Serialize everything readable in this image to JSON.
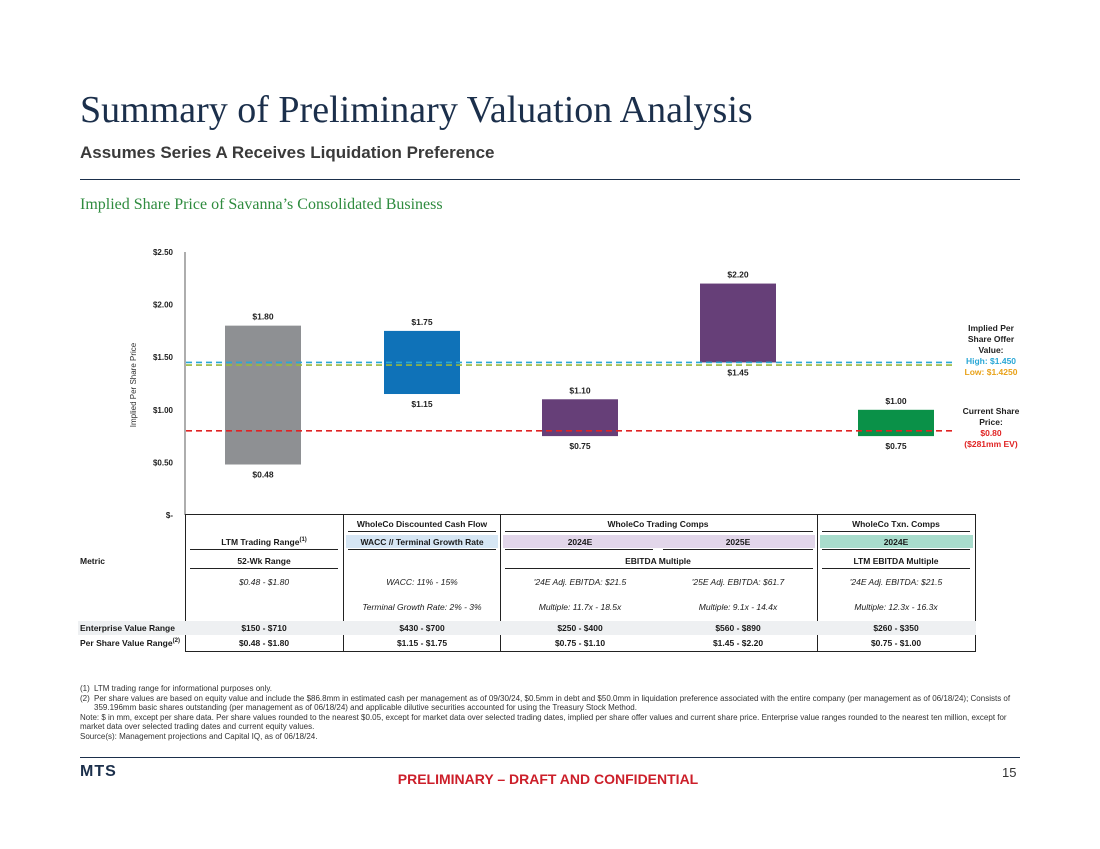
{
  "header": {
    "title": "Summary of Preliminary Valuation Analysis",
    "subtitle": "Assumes Series A Receives Liquidation Preference",
    "section_title": "Implied Share Price of Savanna’s Consolidated Business"
  },
  "chart_data": {
    "type": "bar",
    "subtype": "floating-range",
    "ylabel": "Implied Per Share Price",
    "ylim": [
      0,
      2.5
    ],
    "y_ticks": [
      {
        "value": 0,
        "label": "$-"
      },
      {
        "value": 0.5,
        "label": "$0.50"
      },
      {
        "value": 1.0,
        "label": "$1.00"
      },
      {
        "value": 1.5,
        "label": "$1.50"
      },
      {
        "value": 2.0,
        "label": "$2.00"
      },
      {
        "value": 2.5,
        "label": "$2.50"
      }
    ],
    "bars": [
      {
        "low": 0.48,
        "high": 1.8,
        "low_label": "$0.48",
        "high_label": "$1.80",
        "color": "#8e9093"
      },
      {
        "low": 1.15,
        "high": 1.75,
        "low_label": "$1.15",
        "high_label": "$1.75",
        "color": "#0f72b8"
      },
      {
        "low": 0.75,
        "high": 1.1,
        "low_label": "$0.75",
        "high_label": "$1.10",
        "color": "#663f78"
      },
      {
        "low": 1.45,
        "high": 2.2,
        "low_label": "$1.45",
        "high_label": "$2.20",
        "color": "#663f78"
      },
      {
        "low": 0.75,
        "high": 1.0,
        "low_label": "$0.75",
        "high_label": "$1.00",
        "color": "#0a9148"
      }
    ],
    "reference_lines": [
      {
        "value": 1.45,
        "color": "#2aa7d6"
      },
      {
        "value": 1.425,
        "color": "#9ab83c"
      },
      {
        "value": 0.8,
        "color": "#e02424"
      }
    ],
    "offer_note": {
      "line1": "Implied Per",
      "line2": "Share Offer",
      "line3": "Value:",
      "high": "High: $1.450",
      "low": "Low: $1.4250"
    },
    "current_note": {
      "line1": "Current Share",
      "line2": "Price:",
      "price": "$0.80",
      "ev": "($281mm EV)"
    }
  },
  "table": {
    "groups": [
      {
        "label": "WholeCo Discounted Cash Flow"
      },
      {
        "label": "WholeCo Trading Comps"
      },
      {
        "label": "WholeCo Txn. Comps"
      }
    ],
    "subheaders": {
      "ltm": "LTM Trading Range",
      "ltm_sup": "(1)",
      "dcf": "WACC // Terminal Growth Rate",
      "y2024": "2024E",
      "y2025": "2025E",
      "txn2024": "2024E"
    },
    "metric_row": {
      "label": "Metric",
      "ltm": "52-Wk Range",
      "trading": "EBITDA Multiple",
      "txn": "LTM EBITDA Multiple"
    },
    "detail_row1": {
      "ltm": "$0.48 - $1.80",
      "dcf": "WACC: 11% - 15%",
      "y2024": "'24E Adj. EBITDA: $21.5",
      "y2025": "'25E Adj. EBITDA: $61.7",
      "txn": "'24E Adj. EBITDA: $21.5"
    },
    "detail_row2": {
      "dcf": "Terminal Growth Rate: 2% - 3%",
      "y2024": "Multiple: 11.7x - 18.5x",
      "y2025": "Multiple:  9.1x - 14.4x",
      "txn": "Multiple: 12.3x - 16.3x"
    },
    "ev_row": {
      "label": "Enterprise Value Range",
      "values": [
        "$150 - $710",
        "$430 - $700",
        "$250 - $400",
        "$560 - $890",
        "$260 - $350"
      ]
    },
    "ps_row": {
      "label": "Per Share Value Range",
      "label_sup": "(2)",
      "values": [
        "$0.48 - $1.80",
        "$1.15 - $1.75",
        "$0.75 - $1.10",
        "$1.45 - $2.20",
        "$0.75 - $1.00"
      ]
    }
  },
  "footnotes": {
    "n1_num": "(1)",
    "n1": "LTM trading range for informational purposes only.",
    "n2_num": "(2)",
    "n2": "Per share values are based on equity value and include the $86.8mm in estimated cash per management as of 09/30/24, $0.5mm in debt and $50.0mm in liquidation preference associated with the entire company (per management as of 06/18/24); Consists of 359.196mm basic shares outstanding (per management as of 06/18/24) and applicable dilutive securities accounted for using the Treasury Stock Method.",
    "note": "Note: $ in mm, except per share data. Per share values rounded to the nearest $0.05, except for market data over selected trading dates, implied per share offer values and current share price. Enterprise value ranges rounded to the nearest ten million, except for market data over selected trading dates and current equity values.",
    "source": "Source(s): Management projections and Capital IQ, as of 06/18/24."
  },
  "footer": {
    "logo": "MTS",
    "confidential": "PRELIMINARY – DRAFT AND CONFIDENTIAL",
    "page": "15"
  }
}
